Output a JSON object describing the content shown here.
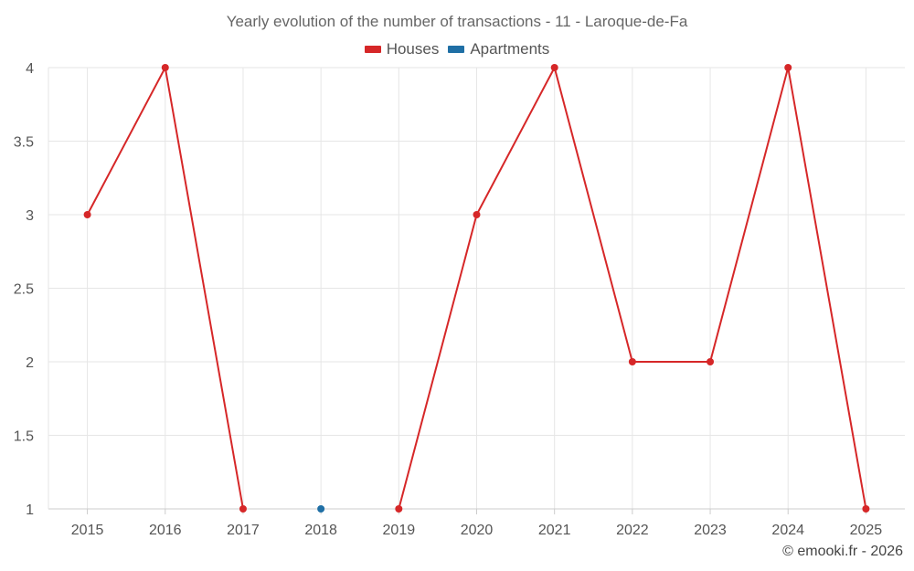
{
  "chart_data": {
    "type": "line",
    "title": "Yearly evolution of the number of transactions - 11 - Laroque-de-Fa",
    "x": [
      "2015",
      "2016",
      "2017",
      "2018",
      "2019",
      "2020",
      "2021",
      "2022",
      "2023",
      "2024",
      "2025"
    ],
    "series": [
      {
        "name": "Houses",
        "color": "#d62728",
        "values": [
          3,
          4,
          1,
          null,
          1,
          3,
          4,
          2,
          2,
          4,
          1
        ]
      },
      {
        "name": "Apartments",
        "color": "#1f6fa5",
        "values": [
          null,
          null,
          null,
          1,
          null,
          null,
          null,
          null,
          null,
          null,
          null
        ]
      }
    ],
    "y_ticks": [
      "1",
      "1.5",
      "2",
      "2.5",
      "3",
      "3.5",
      "4"
    ],
    "ylim": [
      1,
      4
    ],
    "grid": true,
    "legend_position": "top-center"
  },
  "credit": "© emooki.fr - 2026"
}
